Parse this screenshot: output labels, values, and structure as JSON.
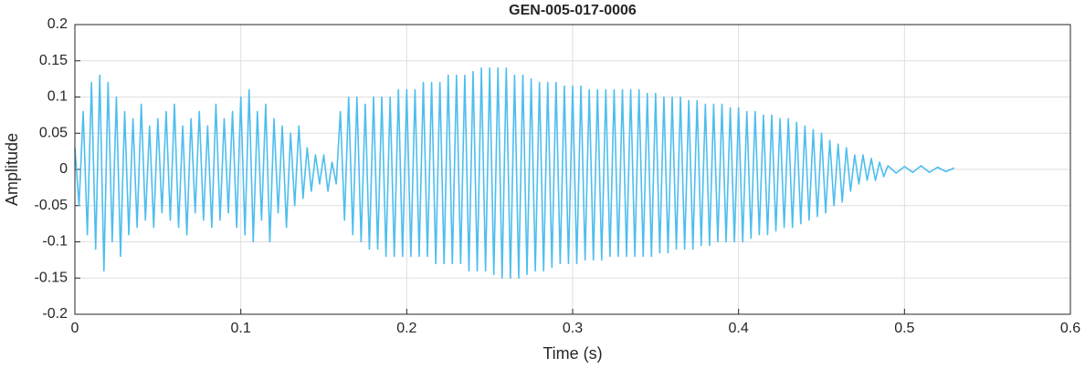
{
  "chart_data": {
    "type": "line",
    "title": "GEN-005-017-0006",
    "x_label": "Time (s)",
    "y_label": "Amplitude",
    "color": "#4DBEEE",
    "grid": true,
    "xlim": [
      0,
      0.6
    ],
    "xticks": [
      0,
      0.1,
      0.2,
      0.3,
      0.4,
      0.5,
      0.6
    ],
    "ylim": [
      -0.2,
      0.2
    ],
    "yticks": [
      -0.2,
      -0.15,
      -0.1,
      -0.05,
      0,
      0.05,
      0.1,
      0.15,
      0.2
    ],
    "x": [
      0,
      0.0025,
      0.005,
      0.0075,
      0.01,
      0.0125,
      0.015,
      0.0175,
      0.02,
      0.0225,
      0.025,
      0.0275,
      0.03,
      0.0325,
      0.035,
      0.0375,
      0.04,
      0.0425,
      0.045,
      0.0475,
      0.05,
      0.0525,
      0.055,
      0.0575,
      0.06,
      0.0625,
      0.065,
      0.0675,
      0.07,
      0.0725,
      0.075,
      0.0775,
      0.08,
      0.0825,
      0.085,
      0.0875,
      0.09,
      0.0925,
      0.095,
      0.0975,
      0.1,
      0.1025,
      0.105,
      0.1075,
      0.11,
      0.1125,
      0.115,
      0.1175,
      0.12,
      0.1225,
      0.125,
      0.1275,
      0.13,
      0.1325,
      0.135,
      0.1375,
      0.14,
      0.1425,
      0.145,
      0.1475,
      0.15,
      0.1525,
      0.155,
      0.1575,
      0.16,
      0.1625,
      0.165,
      0.1675,
      0.17,
      0.1725,
      0.175,
      0.1775,
      0.18,
      0.1825,
      0.185,
      0.1875,
      0.19,
      0.1925,
      0.195,
      0.1975,
      0.2,
      0.2025,
      0.205,
      0.2075,
      0.21,
      0.2125,
      0.215,
      0.2175,
      0.22,
      0.2225,
      0.225,
      0.2275,
      0.23,
      0.2325,
      0.235,
      0.2375,
      0.24,
      0.2425,
      0.245,
      0.2475,
      0.25,
      0.2525,
      0.255,
      0.2575,
      0.26,
      0.2625,
      0.265,
      0.2675,
      0.27,
      0.2725,
      0.275,
      0.2775,
      0.28,
      0.2825,
      0.285,
      0.2875,
      0.29,
      0.2925,
      0.295,
      0.2975,
      0.3,
      0.3025,
      0.305,
      0.3075,
      0.31,
      0.3125,
      0.315,
      0.3175,
      0.32,
      0.3225,
      0.325,
      0.3275,
      0.33,
      0.3325,
      0.335,
      0.3375,
      0.34,
      0.3425,
      0.345,
      0.3475,
      0.35,
      0.3525,
      0.355,
      0.3575,
      0.36,
      0.3625,
      0.365,
      0.3675,
      0.37,
      0.3725,
      0.375,
      0.3775,
      0.38,
      0.3825,
      0.385,
      0.3875,
      0.39,
      0.3925,
      0.395,
      0.3975,
      0.4,
      0.4025,
      0.405,
      0.4075,
      0.41,
      0.4125,
      0.415,
      0.4175,
      0.42,
      0.4225,
      0.425,
      0.4275,
      0.43,
      0.4325,
      0.435,
      0.4375,
      0.44,
      0.4425,
      0.445,
      0.4475,
      0.45,
      0.4525,
      0.455,
      0.4575,
      0.46,
      0.4625,
      0.465,
      0.4675,
      0.47,
      0.4725,
      0.475,
      0.4775,
      0.48,
      0.4825,
      0.485,
      0.4875,
      0.49,
      0.495,
      0.5,
      0.505,
      0.51,
      0.515,
      0.52,
      0.525,
      0.53
    ],
    "values": [
      0.03,
      -0.05,
      0.08,
      -0.09,
      0.12,
      -0.11,
      0.13,
      -0.14,
      0.12,
      -0.1,
      0.1,
      -0.12,
      0.08,
      -0.09,
      0.07,
      -0.08,
      0.09,
      -0.07,
      0.06,
      -0.08,
      0.07,
      -0.06,
      0.08,
      -0.07,
      0.09,
      -0.08,
      0.06,
      -0.09,
      0.07,
      -0.06,
      0.08,
      -0.07,
      0.06,
      -0.08,
      0.09,
      -0.07,
      0.07,
      -0.06,
      0.08,
      -0.08,
      0.1,
      -0.09,
      0.11,
      -0.1,
      0.08,
      -0.07,
      0.09,
      -0.1,
      0.07,
      -0.06,
      0.06,
      -0.08,
      0.05,
      -0.05,
      0.06,
      -0.04,
      0.03,
      -0.03,
      0.02,
      -0.02,
      0.02,
      -0.03,
      0.01,
      -0.02,
      0.08,
      -0.07,
      0.1,
      -0.09,
      0.1,
      -0.1,
      0.09,
      -0.11,
      0.1,
      -0.11,
      0.1,
      -0.12,
      0.1,
      -0.12,
      0.11,
      -0.12,
      0.11,
      -0.12,
      0.11,
      -0.12,
      0.12,
      -0.12,
      0.12,
      -0.13,
      0.12,
      -0.13,
      0.13,
      -0.13,
      0.13,
      -0.13,
      0.13,
      -0.14,
      0.135,
      -0.14,
      0.14,
      -0.14,
      0.14,
      -0.145,
      0.14,
      -0.15,
      0.14,
      -0.15,
      0.13,
      -0.15,
      0.13,
      -0.145,
      0.125,
      -0.14,
      0.12,
      -0.14,
      0.12,
      -0.135,
      0.12,
      -0.13,
      0.115,
      -0.13,
      0.115,
      -0.13,
      0.115,
      -0.125,
      0.11,
      -0.125,
      0.11,
      -0.125,
      0.11,
      -0.12,
      0.11,
      -0.12,
      0.11,
      -0.12,
      0.11,
      -0.12,
      0.11,
      -0.12,
      0.105,
      -0.12,
      0.105,
      -0.115,
      0.1,
      -0.115,
      0.1,
      -0.11,
      0.1,
      -0.11,
      0.095,
      -0.11,
      0.095,
      -0.105,
      0.09,
      -0.105,
      0.09,
      -0.1,
      0.09,
      -0.1,
      0.085,
      -0.1,
      0.085,
      -0.1,
      0.08,
      -0.095,
      0.08,
      -0.09,
      0.075,
      -0.09,
      0.075,
      -0.085,
      0.07,
      -0.08,
      0.07,
      -0.08,
      0.065,
      -0.075,
      0.06,
      -0.07,
      0.055,
      -0.065,
      0.05,
      -0.06,
      0.04,
      -0.05,
      0.035,
      -0.045,
      0.03,
      -0.03,
      0.02,
      -0.02,
      0.02,
      -0.015,
      0.015,
      -0.015,
      0.01,
      -0.01,
      0.005,
      -0.005,
      0.004,
      -0.004,
      0.005,
      -0.004,
      0.003,
      -0.003,
      0.002
    ]
  }
}
